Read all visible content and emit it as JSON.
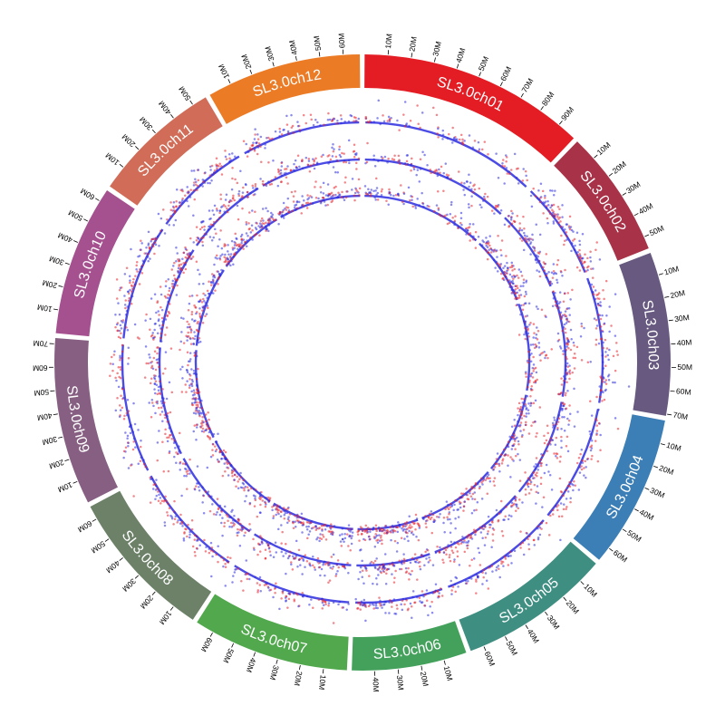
{
  "chart_data": {
    "type": "scatter",
    "title": "",
    "subtitle": "",
    "layout": "circular",
    "tick_suffix": "M",
    "tick_interval_mb": 10,
    "chromosomes": [
      {
        "name": "SL3.0ch01",
        "length_mb": 98.5,
        "color": "#e41c23"
      },
      {
        "name": "SL3.0ch02",
        "length_mb": 55.3,
        "color": "#a83348"
      },
      {
        "name": "SL3.0ch03",
        "length_mb": 70.8,
        "color": "#67597f"
      },
      {
        "name": "SL3.0ch04",
        "length_mb": 66.5,
        "color": "#3c7eb6"
      },
      {
        "name": "SL3.0ch05",
        "length_mb": 65.9,
        "color": "#3f8e82"
      },
      {
        "name": "SL3.0ch06",
        "length_mb": 49.8,
        "color": "#43a15c"
      },
      {
        "name": "SL3.0ch07",
        "length_mb": 68.0,
        "color": "#51a84d"
      },
      {
        "name": "SL3.0ch08",
        "length_mb": 65.9,
        "color": "#6c8168"
      },
      {
        "name": "SL3.0ch09",
        "length_mb": 72.5,
        "color": "#875f82"
      },
      {
        "name": "SL3.0ch10",
        "length_mb": 65.5,
        "color": "#a5508f"
      },
      {
        "name": "SL3.0ch11",
        "length_mb": 56.3,
        "color": "#d06c57"
      },
      {
        "name": "SL3.0ch12",
        "length_mb": 67.1,
        "color": "#ec7b26"
      }
    ],
    "tracks": [
      {
        "series": [
          {
            "color": "#e8232a"
          },
          {
            "color": "#2b2be0"
          }
        ]
      },
      {
        "series": [
          {
            "color": "#e8232a"
          },
          {
            "color": "#2b2be0"
          }
        ]
      },
      {
        "series": [
          {
            "color": "#e8232a"
          },
          {
            "color": "#2b2be0"
          }
        ]
      }
    ],
    "grid": false,
    "legend": "none"
  }
}
